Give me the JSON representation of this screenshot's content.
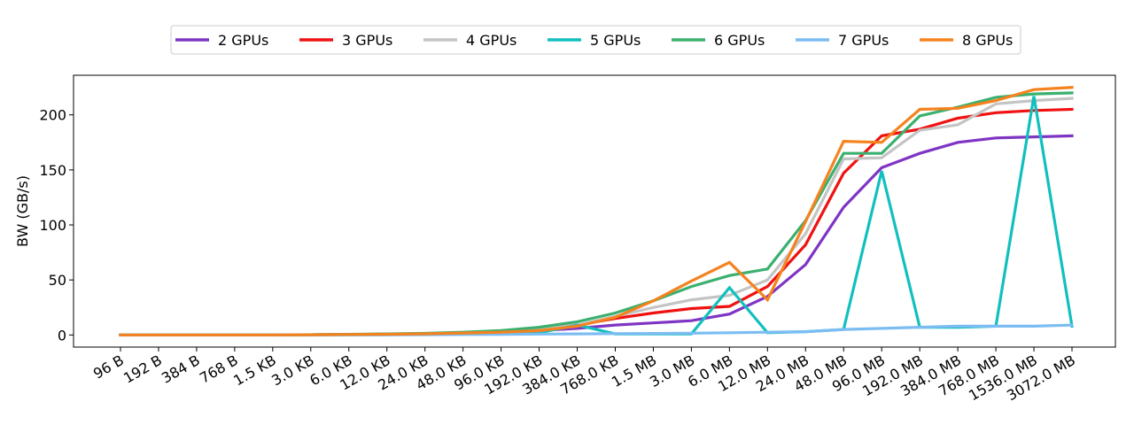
{
  "chart_data": {
    "type": "line",
    "title": "",
    "xlabel": "",
    "ylabel": "BW (GB/s)",
    "categories": [
      "96 B",
      "192 B",
      "384 B",
      "768 B",
      "1.5 KB",
      "3.0 KB",
      "6.0 KB",
      "12.0 KB",
      "24.0 KB",
      "48.0 KB",
      "96.0 KB",
      "192.0 KB",
      "384.0 KB",
      "768.0 KB",
      "1.5 MB",
      "3.0 MB",
      "6.0 MB",
      "12.0 MB",
      "24.0 MB",
      "48.0 MB",
      "96.0 MB",
      "192.0 MB",
      "384.0 MB",
      "768.0 MB",
      "1536.0 MB",
      "3072.0 MB"
    ],
    "ylim": [
      -11,
      236
    ],
    "yticks": [
      0,
      50,
      100,
      150,
      200
    ],
    "legend_position": "top-center",
    "grid": false,
    "series": [
      {
        "name": "2 GPUs",
        "color": "#7f35c4",
        "values": [
          0,
          0,
          0,
          0,
          0,
          0.2,
          0.4,
          0.8,
          1.0,
          1.5,
          2.5,
          4,
          6,
          9,
          11,
          13,
          19,
          35,
          64,
          116,
          152,
          165,
          175,
          179,
          180,
          181
        ]
      },
      {
        "name": "3 GPUs",
        "color": "#f01111",
        "values": [
          0,
          0,
          0,
          0,
          0,
          0.2,
          0.4,
          0.8,
          1.2,
          2,
          3,
          5,
          9,
          15,
          20,
          24,
          26,
          44,
          82,
          147,
          181,
          187,
          197,
          202,
          204,
          205
        ]
      },
      {
        "name": "4 GPUs",
        "color": "#c4c4c4",
        "values": [
          0,
          0,
          0,
          0,
          0,
          0.2,
          0.5,
          0.9,
          1.3,
          2.2,
          3.2,
          5,
          9,
          17,
          25,
          32,
          36,
          50,
          92,
          160,
          161,
          186,
          191,
          210,
          213,
          215
        ]
      },
      {
        "name": "5 GPUs",
        "color": "#12bfbf",
        "values": [
          0,
          0,
          0,
          0,
          0,
          0,
          0.2,
          0.3,
          0.5,
          0.8,
          1,
          2,
          9,
          1,
          1,
          1,
          43,
          2,
          3,
          5,
          149,
          7,
          7,
          8,
          217,
          8
        ]
      },
      {
        "name": "6 GPUs",
        "color": "#3bb06f",
        "values": [
          0,
          0,
          0,
          0,
          0,
          0.3,
          0.6,
          1,
          1.5,
          2.5,
          4,
          7,
          12,
          20,
          31,
          44,
          54,
          60,
          104,
          165,
          165,
          199,
          207,
          216,
          219,
          220
        ]
      },
      {
        "name": "7 GPUs",
        "color": "#7bbdf2",
        "values": [
          0,
          0,
          0,
          0,
          0,
          0,
          0.1,
          0.2,
          0.3,
          0.4,
          0.6,
          0.8,
          1,
          1.2,
          1.4,
          1.6,
          2,
          2.5,
          3,
          5,
          6,
          7,
          8,
          8,
          8,
          9
        ]
      },
      {
        "name": "8 GPUs",
        "color": "#f5821e",
        "values": [
          0,
          0,
          0,
          0,
          0,
          0.2,
          0.4,
          0.7,
          1.1,
          1.8,
          2.5,
          4,
          8,
          16,
          31,
          49,
          66,
          32,
          103,
          176,
          175,
          205,
          206,
          213,
          223,
          225
        ]
      }
    ]
  }
}
